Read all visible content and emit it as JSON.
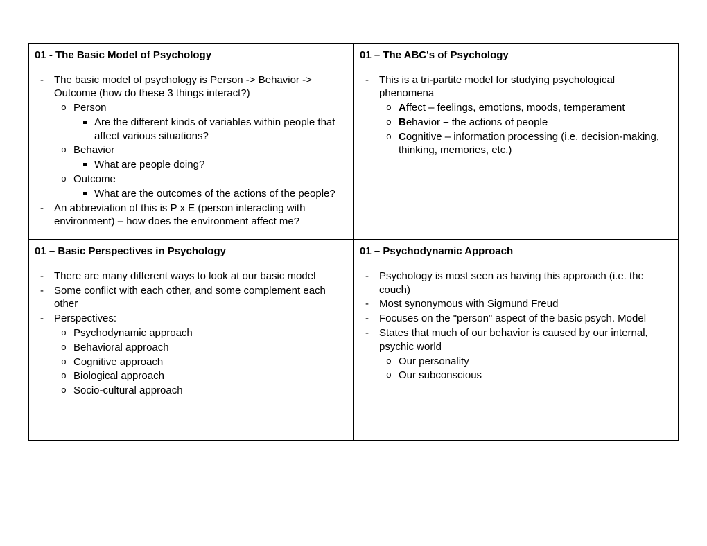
{
  "page": {
    "background_color": "#ffffff",
    "text_color": "#000000",
    "border_color": "#000000",
    "font_family": "Arial",
    "body_fontsize_pt": 11
  },
  "cells": {
    "r1c1": {
      "title": "01 - The Basic Model of Psychology",
      "d1": "The basic model of psychology is Person -> Behavior -> Outcome (how do these 3 things interact?)",
      "c1": "Person",
      "s1": "Are the different kinds of variables within people that affect various situations?",
      "c2": "Behavior",
      "s2": "What are people doing?",
      "c3": "Outcome",
      "s3": "What are the outcomes of the actions of the people?",
      "d2": "An abbreviation of this is P x E (person interacting with environment) – how does the environment affect me?"
    },
    "r1c2": {
      "title": "01 – The ABC's of Psychology",
      "d1": "This is a tri-partite model for studying psychological phenomena",
      "c1_bold": "A",
      "c1_rest": "ffect – feelings, emotions, moods, temperament",
      "c2_bold": "B",
      "c2_rest": "ehavior ",
      "c2_bold2": "–",
      "c2_rest2": " the actions of people",
      "c3_bold": "C",
      "c3_rest": "ognitive – information processing (i.e. decision-making, thinking, memories, etc.)"
    },
    "r2c1": {
      "title": "01 – Basic Perspectives in Psychology",
      "d1": "There are many different ways to look at our basic model",
      "d2": "Some conflict with each other, and some complement each other",
      "d3": "Perspectives:",
      "c1": "Psychodynamic approach",
      "c2": "Behavioral approach",
      "c3": "Cognitive approach",
      "c4": "Biological approach",
      "c5": "Socio-cultural approach"
    },
    "r2c2": {
      "title": "01 – Psychodynamic Approach",
      "d1": "Psychology is most seen as having this approach (i.e. the couch)",
      "d2": "Most synonymous with Sigmund Freud",
      "d3": "Focuses on the \"person\" aspect of the basic psych. Model",
      "d4": "States that much of our behavior is caused by our internal, psychic world",
      "c1": "Our personality",
      "c2": "Our subconscious"
    }
  }
}
